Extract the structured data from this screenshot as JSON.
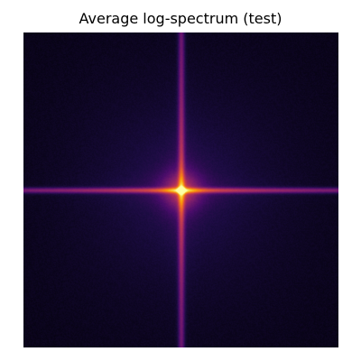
{
  "chart_data": {
    "type": "heatmap",
    "title": "Average log-spectrum (test)",
    "xlabel": "",
    "ylabel": "",
    "axes_visible": false,
    "colormap": "inferno",
    "colormap_stops": [
      "#000004",
      "#1b0c41",
      "#4a0c6b",
      "#781c6d",
      "#a52c60",
      "#cf4446",
      "#ed6925",
      "#fb9b06",
      "#f7d13d",
      "#fcffa4"
    ],
    "value_range": [
      0,
      1
    ],
    "peak_value": 0.72,
    "features": {
      "center_peak": 0.72,
      "horizontal_axis_line": 0.42,
      "vertical_axis_line": 0.37,
      "background": 0.03
    },
    "grid": false,
    "legend": "none",
    "colorbar": false
  }
}
